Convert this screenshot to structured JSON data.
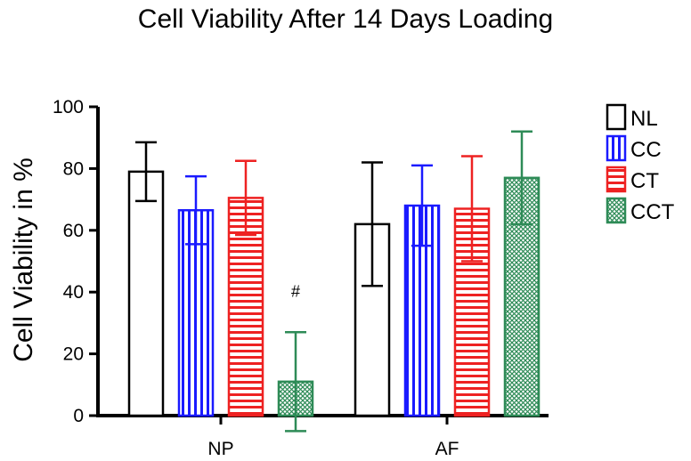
{
  "chart_data": {
    "type": "bar",
    "title": "Cell Viability After 14 Days Loading",
    "xlabel": "",
    "ylabel": "Cell Viability in %",
    "ylim": [
      0,
      100
    ],
    "yticks": [
      0,
      20,
      40,
      60,
      80,
      100
    ],
    "categories": [
      "NP",
      "AF"
    ],
    "series": [
      {
        "name": "NL",
        "values": [
          79,
          62
        ],
        "error": [
          9.5,
          20
        ],
        "color": "#000000",
        "pattern": "none"
      },
      {
        "name": "CC",
        "values": [
          66.5,
          68
        ],
        "error": [
          11,
          13
        ],
        "color": "#1a1aff",
        "pattern": "vertical-stripes"
      },
      {
        "name": "CT",
        "values": [
          70.5,
          67
        ],
        "error": [
          12,
          17
        ],
        "color": "#ee2222",
        "pattern": "horizontal-stripes"
      },
      {
        "name": "CCT",
        "values": [
          11,
          77
        ],
        "error": [
          16,
          15
        ],
        "color": "#2e8b57",
        "pattern": "crosshatch"
      }
    ],
    "annotations": [
      {
        "text": "#",
        "category": "NP",
        "series": "CCT"
      }
    ],
    "legend_position": "right",
    "grid": false
  }
}
